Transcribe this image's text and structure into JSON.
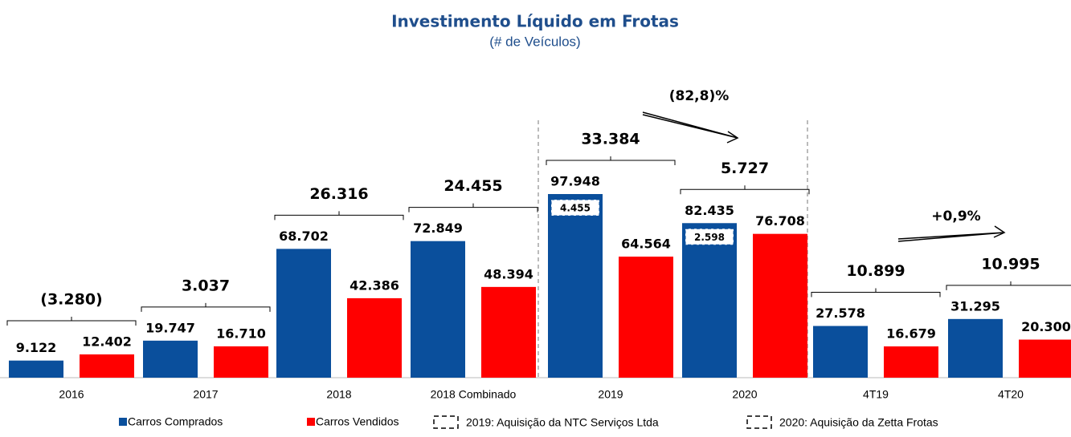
{
  "chart_data": {
    "type": "bar",
    "title": "Investimento Líquido em Frotas",
    "subtitle": "(# de Veículos)",
    "categories": [
      "2016",
      "2017",
      "2018",
      "2018 Combinado",
      "2019",
      "2020",
      "4T19",
      "4T20"
    ],
    "series": [
      {
        "name": "Carros Comprados",
        "color": "#0a4f9c",
        "values": [
          9122,
          19747,
          68702,
          72849,
          97948,
          82435,
          27578,
          31295
        ],
        "value_labels": [
          "9.122",
          "19.747",
          "68.702",
          "72.849",
          "97.948",
          "82.435",
          "27.578",
          "31.295"
        ]
      },
      {
        "name": "Carros Vendidos",
        "color": "#ff0000",
        "values": [
          12402,
          16710,
          42386,
          48394,
          64564,
          76708,
          16679,
          20300
        ],
        "value_labels": [
          "12.402",
          "16.710",
          "42.386",
          "48.394",
          "64.564",
          "76.708",
          "16.679",
          "20.300"
        ]
      }
    ],
    "net": {
      "values": [
        -3280,
        3037,
        26316,
        24455,
        33384,
        5727,
        10899,
        10995
      ],
      "value_labels": [
        "(3.280)",
        "3.037",
        "26.316",
        "24.455",
        "33.384",
        "5.727",
        "10.899",
        "10.995"
      ]
    },
    "acquired": {
      "values": [
        null,
        null,
        null,
        null,
        4455,
        2598,
        null,
        null
      ],
      "value_labels": [
        null,
        null,
        null,
        null,
        "4.455",
        "2.598",
        null,
        null
      ]
    },
    "changes": [
      {
        "value": -82.8,
        "label": "(82,8)%"
      },
      {
        "value": 0.9,
        "label": "+0,9%"
      }
    ],
    "notes": [
      "2019: Aquisição da NTC Serviços Ltda",
      "2020: Aquisição da Zetta Frotas"
    ]
  }
}
